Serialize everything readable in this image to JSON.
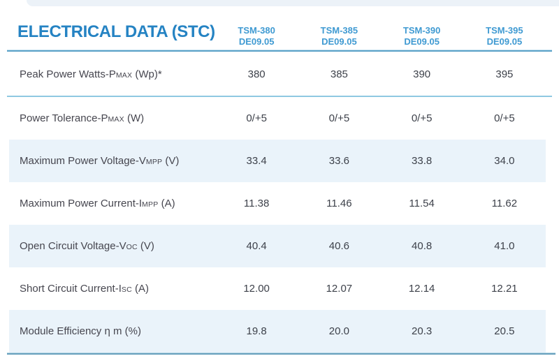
{
  "page": {
    "title": "ELECTRICAL DATA (STC)"
  },
  "table": {
    "columns": [
      {
        "model": "TSM-380",
        "version": "DE09.05"
      },
      {
        "model": "TSM-385",
        "version": "DE09.05"
      },
      {
        "model": "TSM-390",
        "version": "DE09.05"
      },
      {
        "model": "TSM-395",
        "version": "DE09.05"
      }
    ],
    "rows": [
      {
        "label_main": "Peak Power Watts-P",
        "label_sub": "MAX",
        "label_suffix": " (Wp)*",
        "values": [
          "380",
          "385",
          "390",
          "395"
        ]
      },
      {
        "label_main": "Power Tolerance-P",
        "label_sub": "MAX",
        "label_suffix": " (W)",
        "values": [
          "0/+5",
          "0/+5",
          "0/+5",
          "0/+5"
        ]
      },
      {
        "label_main": "Maximum Power Voltage-V",
        "label_sub": "MPP",
        "label_suffix": " (V)",
        "values": [
          "33.4",
          "33.6",
          "33.8",
          "34.0"
        ]
      },
      {
        "label_main": "Maximum Power Current-I",
        "label_sub": "MPP",
        "label_suffix": " (A)",
        "values": [
          "11.38",
          "11.46",
          "11.54",
          "11.62"
        ]
      },
      {
        "label_main": "Open Circuit Voltage-V",
        "label_sub": "OC",
        "label_suffix": " (V)",
        "values": [
          "40.4",
          "40.6",
          "40.8",
          "41.0"
        ]
      },
      {
        "label_main": "Short Circuit Current-I",
        "label_sub": "SC",
        "label_suffix": " (A)",
        "values": [
          "12.00",
          "12.07",
          "12.14",
          "12.21"
        ]
      },
      {
        "label_main": "Module Efficiency η m (%)",
        "label_sub": "",
        "label_suffix": "",
        "values": [
          "19.8",
          "20.0",
          "20.3",
          "20.5"
        ]
      }
    ]
  },
  "colors": {
    "title_blue": "#2583c3",
    "column_header_blue": "#3f9ad2",
    "header_rule": "#5ca2c8",
    "row_separator": "#8fc8e2",
    "bottom_rule": "#68a0bd",
    "alt_row_background": "#eaf3fa",
    "label_text": "#46464f",
    "value_text": "#3d414a"
  }
}
